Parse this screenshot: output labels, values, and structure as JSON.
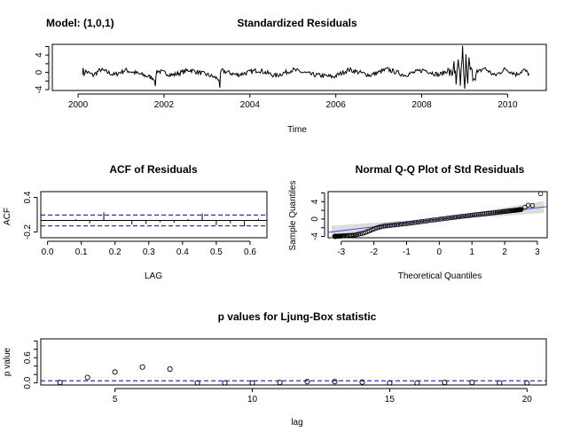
{
  "header": {
    "model_label": "Model: (1,0,1)"
  },
  "chart_data": [
    {
      "id": "residuals",
      "type": "line",
      "title": "Standardized Residuals",
      "xlabel": "Time",
      "ylabel": "",
      "xlim": [
        1999.4,
        2010.9
      ],
      "ylim": [
        -4.2,
        6.5
      ],
      "xticks": [
        2000,
        2002,
        2004,
        2006,
        2008,
        2010
      ],
      "yticks": [
        -4,
        -2,
        0,
        2,
        4,
        6
      ],
      "ytick_labels": [
        "-4",
        "",
        "0",
        "",
        "4",
        ""
      ],
      "x_start": 2000.1,
      "x_end": 2010.5,
      "grid": false,
      "series": [
        {
          "color": "#000000",
          "keypoints": [
            [
              2000.1,
              0.0
            ],
            [
              2000.12,
              1.3
            ],
            [
              2000.14,
              -1.2
            ],
            [
              2000.17,
              0.6
            ],
            [
              2000.35,
              -1.5
            ],
            [
              2000.52,
              1.4
            ],
            [
              2000.85,
              -1.3
            ],
            [
              2001.1,
              1.2
            ],
            [
              2001.55,
              -1.6
            ],
            [
              2001.8,
              -3.2
            ],
            [
              2001.83,
              0.9
            ],
            [
              2002.2,
              -1.4
            ],
            [
              2002.6,
              1.3
            ],
            [
              2003.05,
              -1.5
            ],
            [
              2003.3,
              -3.6
            ],
            [
              2003.33,
              1.0
            ],
            [
              2003.7,
              -1.3
            ],
            [
              2004.2,
              1.2
            ],
            [
              2004.6,
              -1.8
            ],
            [
              2005.0,
              1.3
            ],
            [
              2005.45,
              -1.2
            ],
            [
              2005.95,
              -2.3
            ],
            [
              2006.3,
              1.4
            ],
            [
              2006.8,
              -1.5
            ],
            [
              2007.2,
              1.6
            ],
            [
              2007.6,
              -1.4
            ],
            [
              2008.05,
              1.3
            ],
            [
              2008.4,
              -1.4
            ],
            [
              2008.6,
              0.9
            ],
            [
              2008.7,
              -1.5
            ],
            [
              2008.75,
              2.6
            ],
            [
              2008.8,
              -2.8
            ],
            [
              2008.85,
              3.0
            ],
            [
              2008.9,
              -3.1
            ],
            [
              2008.95,
              6.2
            ],
            [
              2009.0,
              -3.8
            ],
            [
              2009.03,
              4.2
            ],
            [
              2009.07,
              -2.6
            ],
            [
              2009.1,
              3.5
            ],
            [
              2009.2,
              -2.1
            ],
            [
              2009.45,
              2.3
            ],
            [
              2009.7,
              -1.7
            ],
            [
              2009.95,
              1.8
            ],
            [
              2010.2,
              -1.1
            ],
            [
              2010.38,
              1.3
            ],
            [
              2010.5,
              -0.9
            ]
          ]
        }
      ]
    },
    {
      "id": "acf",
      "type": "bar",
      "title": "ACF of Residuals",
      "xlabel": "LAG",
      "ylabel": "ACF",
      "xlim": [
        -0.02,
        0.65
      ],
      "ylim": [
        -0.3,
        0.5
      ],
      "xticks": [
        0.0,
        0.1,
        0.2,
        0.3,
        0.4,
        0.5,
        0.6
      ],
      "yticks": [
        -0.2,
        0.4
      ],
      "x": [
        0.0417,
        0.0833,
        0.125,
        0.1667,
        0.2083,
        0.25,
        0.2917,
        0.3333,
        0.375,
        0.4167,
        0.4583,
        0.5,
        0.5417,
        0.5833,
        0.625
      ],
      "values": [
        0.01,
        0.02,
        -0.05,
        0.14,
        0.01,
        -0.07,
        -0.06,
        -0.03,
        -0.04,
        0.02,
        0.12,
        -0.08,
        -0.05,
        -0.1,
        0.03
      ],
      "zero_line_color": "#000000",
      "confidence_bounds": [
        -0.095,
        0.095
      ],
      "bound_color": "#0000cc"
    },
    {
      "id": "qq",
      "type": "scatter",
      "title": "Normal Q-Q Plot of Std Residuals",
      "xlabel": "Theoretical Quantiles",
      "ylabel": "Sample Quantiles",
      "xlim": [
        -3.4,
        3.3
      ],
      "ylim": [
        -4.3,
        6.3
      ],
      "xticks": [
        -3,
        -2,
        -1,
        0,
        1,
        2,
        3
      ],
      "yticks": [
        -4,
        -2,
        0,
        2,
        4,
        6
      ],
      "ytick_labels": [
        "-4",
        "",
        "0",
        "",
        "4",
        ""
      ],
      "reference_line": {
        "intercept": -0.05,
        "slope": 0.88,
        "color": "#3b4fcf"
      },
      "band_color": "#dcdcdc",
      "point_color": "#000000",
      "curve_keypoints": [
        [
          -3.2,
          -4.0
        ],
        [
          -2.6,
          -3.7
        ],
        [
          -2.3,
          -3.2
        ],
        [
          -2.1,
          -2.6
        ],
        [
          -1.9,
          -2.0
        ],
        [
          -1.7,
          -1.6
        ],
        [
          -1.5,
          -1.45
        ],
        [
          -1.0,
          -1.05
        ],
        [
          0.0,
          -0.05
        ],
        [
          1.0,
          0.9
        ],
        [
          1.5,
          1.3
        ],
        [
          1.8,
          1.55
        ],
        [
          2.0,
          1.75
        ],
        [
          2.3,
          2.0
        ],
        [
          2.5,
          2.2
        ]
      ],
      "extra_points": [
        [
          2.62,
          2.7
        ],
        [
          2.72,
          3.2
        ],
        [
          2.85,
          3.1
        ],
        [
          3.1,
          5.8
        ]
      ]
    },
    {
      "id": "ljungbox",
      "type": "scatter",
      "title": "p values for Ljung-Box statistic",
      "xlabel": "lag",
      "ylabel": "p value",
      "xlim": [
        2.3,
        20.7
      ],
      "ylim": [
        -0.05,
        1.05
      ],
      "xticks": [
        5,
        10,
        15,
        20
      ],
      "yticks": [
        0.0,
        0.6
      ],
      "ytick_labels_all": [
        0.0,
        0.2,
        0.4,
        0.6,
        0.8,
        1.0
      ],
      "x": [
        3,
        4,
        5,
        6,
        7,
        8,
        9,
        10,
        11,
        12,
        13,
        14,
        15,
        16,
        17,
        18,
        19,
        20
      ],
      "values": [
        0.01,
        0.13,
        0.26,
        0.38,
        0.33,
        0.0,
        0.0,
        0.0,
        0.01,
        0.03,
        0.03,
        0.02,
        0.0,
        0.0,
        0.01,
        0.01,
        0.0,
        0.0
      ],
      "threshold": 0.05,
      "threshold_color": "#0000cc"
    }
  ]
}
